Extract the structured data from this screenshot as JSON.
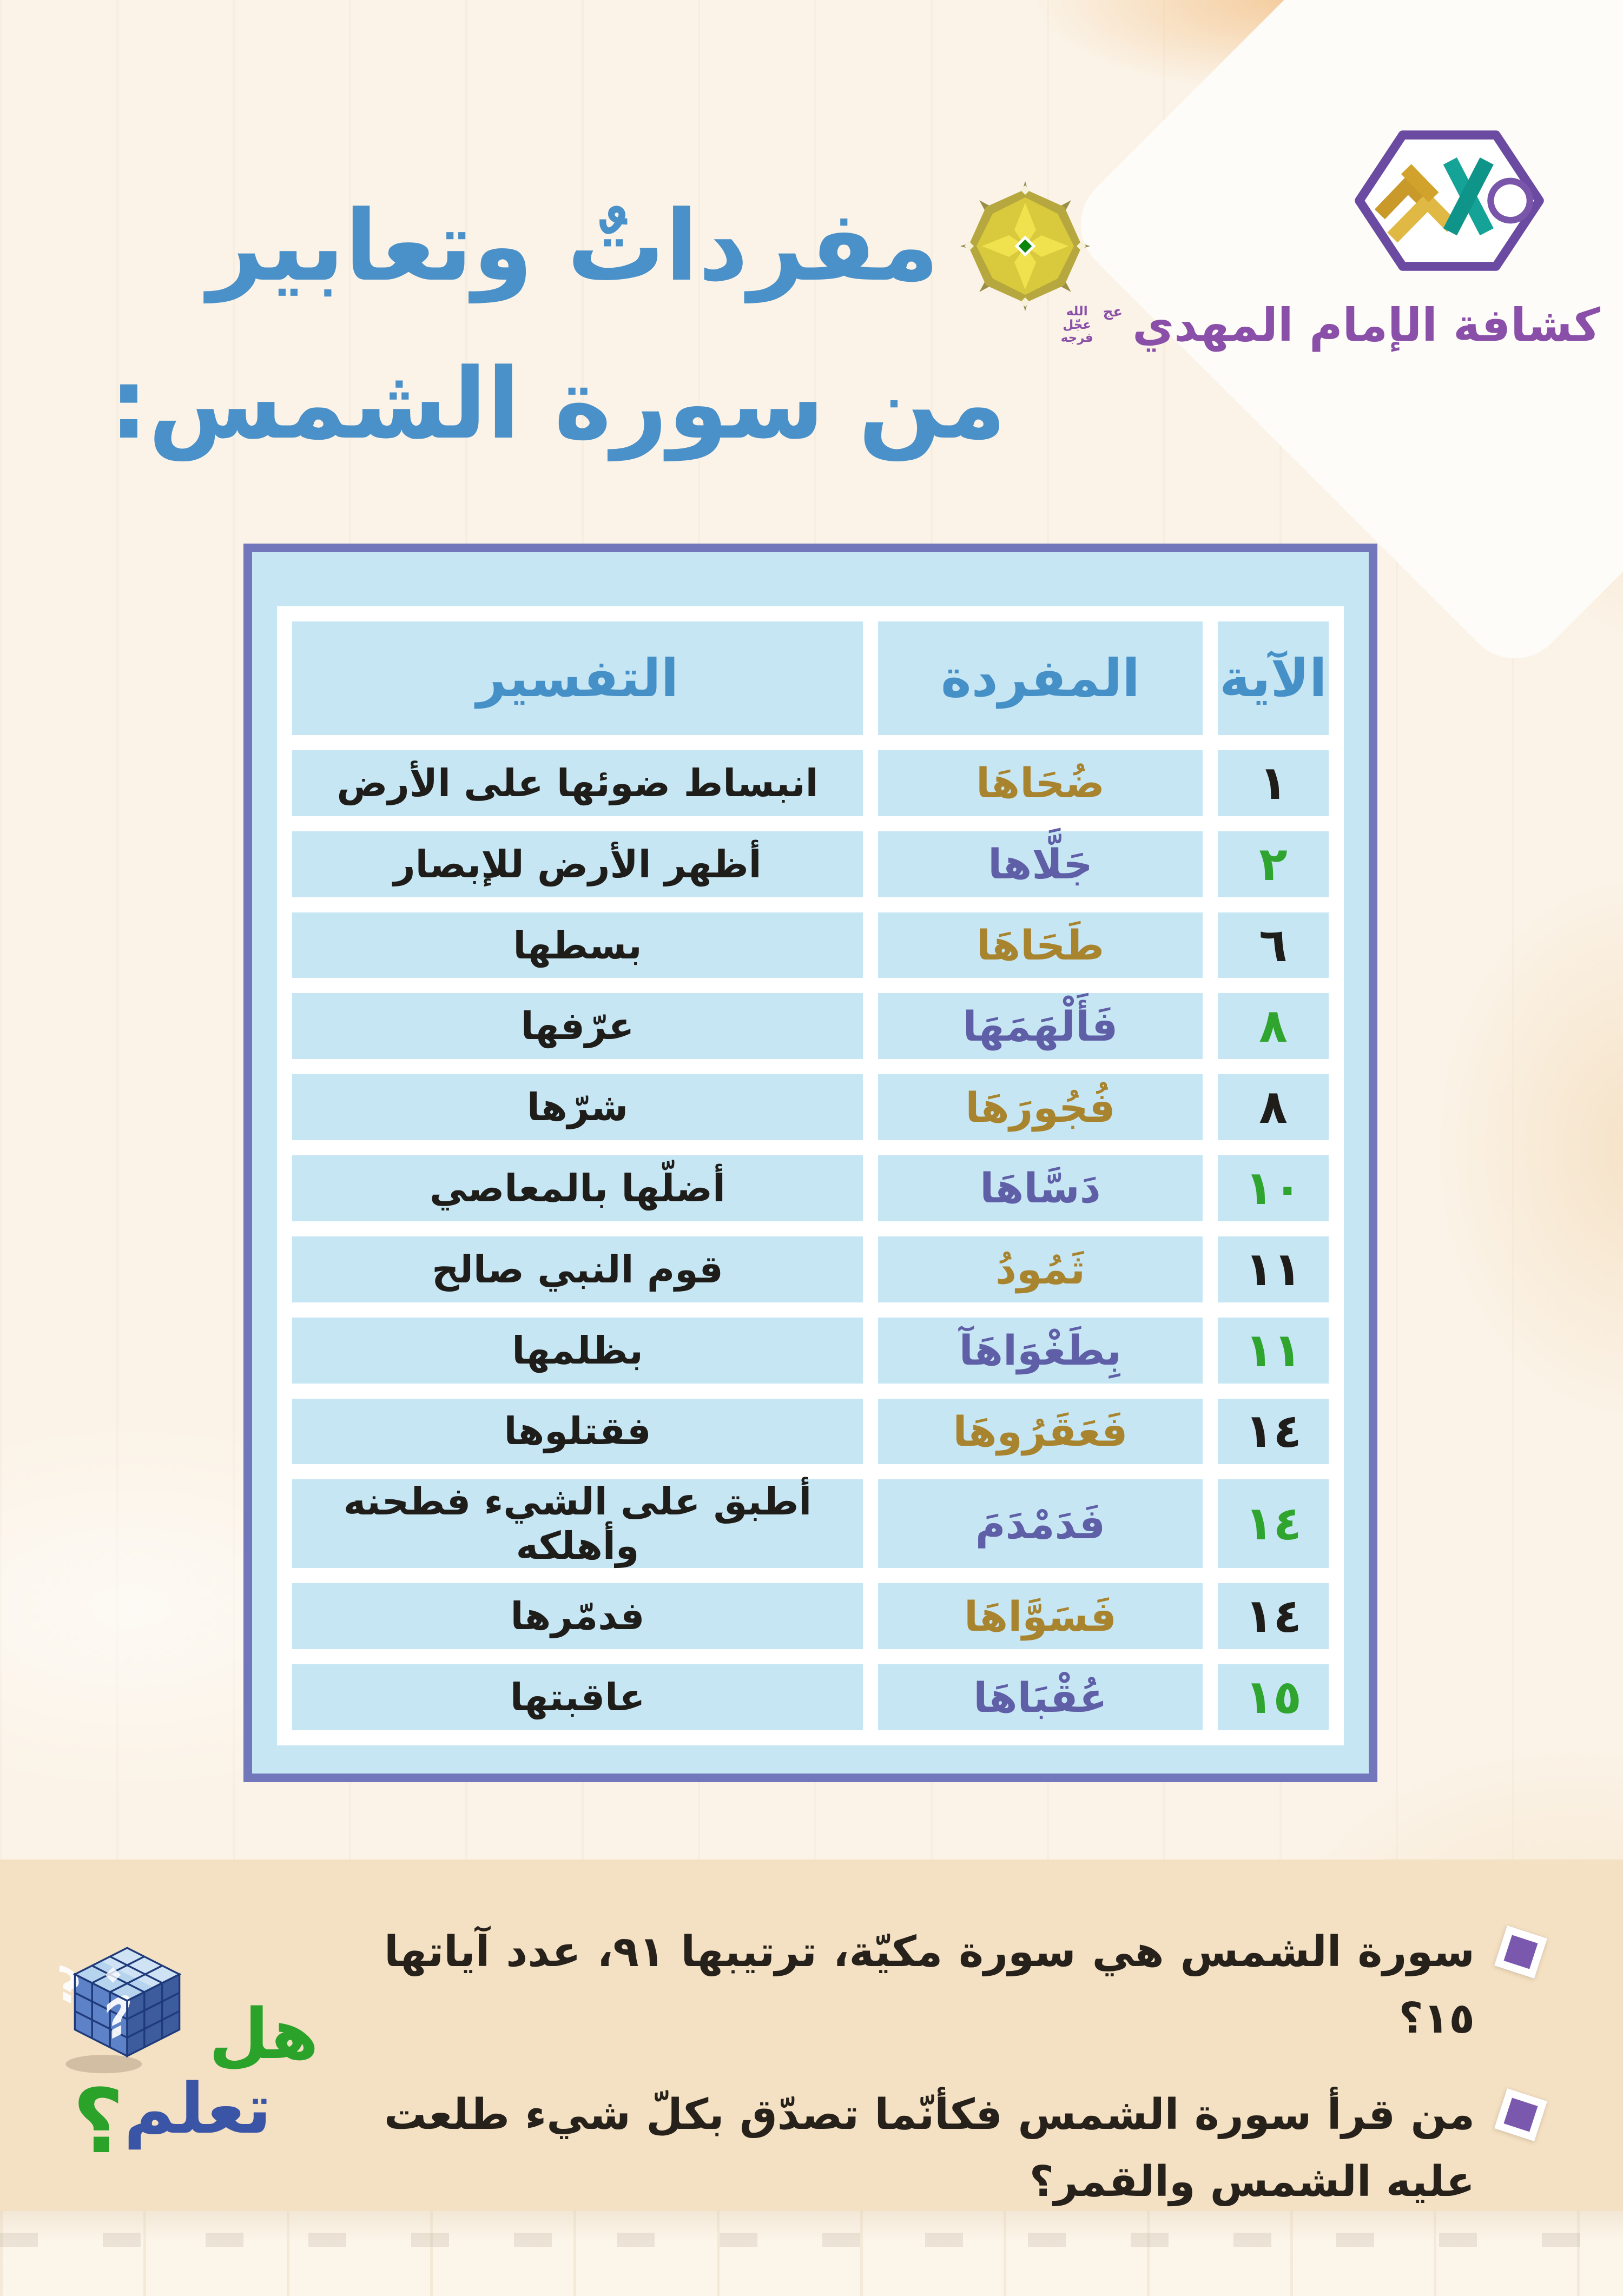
{
  "brand": {
    "name": "كشافة الإمام المهدي",
    "aj": "عج",
    "blessing": [
      "الله",
      "عجّل",
      "فرجه"
    ]
  },
  "title": {
    "line1": "مفرداتٌ وتعابير",
    "line2": "من سورة الشمس:"
  },
  "table": {
    "headers": {
      "verse": "الآية",
      "word": "المفردة",
      "tafsir": "التفسير"
    },
    "rows": [
      {
        "verse": "١",
        "verse_color": "black",
        "word": "ضُحَاهَا",
        "word_color": "gold",
        "tafsir": "انبساط ضوئها على الأرض"
      },
      {
        "verse": "٢",
        "verse_color": "green",
        "word": "جَلَّاها",
        "word_color": "purple",
        "tafsir": "أظهر الأرض للإبصار"
      },
      {
        "verse": "٦",
        "verse_color": "black",
        "word": "طَحَاهَا",
        "word_color": "gold",
        "tafsir": "بسطها"
      },
      {
        "verse": "٨",
        "verse_color": "green",
        "word": "فَأَلْهَمَهَا",
        "word_color": "purple",
        "tafsir": "عرّفها"
      },
      {
        "verse": "٨",
        "verse_color": "black",
        "word": "فُجُورَهَا",
        "word_color": "gold",
        "tafsir": "شرّها"
      },
      {
        "verse": "١٠",
        "verse_color": "green",
        "word": "دَسَّاهَا",
        "word_color": "purple",
        "tafsir": "أضلّها بالمعاصي"
      },
      {
        "verse": "١١",
        "verse_color": "black",
        "word": "ثَمُودُ",
        "word_color": "gold",
        "tafsir": "قوم النبي صالح"
      },
      {
        "verse": "١١",
        "verse_color": "green",
        "word": "بِطَغْوَاهَآ",
        "word_color": "purple",
        "tafsir": "بظلمها"
      },
      {
        "verse": "١٤",
        "verse_color": "black",
        "word": "فَعَقَرُوهَا",
        "word_color": "gold",
        "tafsir": "فقتلوها"
      },
      {
        "verse": "١٤",
        "verse_color": "green",
        "word": "فَدَمْدَمَ",
        "word_color": "purple",
        "tafsir": "أطبق على الشيء فطحنه وأهلكه"
      },
      {
        "verse": "١٤",
        "verse_color": "black",
        "word": "فَسَوَّاهَا",
        "word_color": "gold",
        "tafsir": "فدمّرها"
      },
      {
        "verse": "١٥",
        "verse_color": "green",
        "word": "عُقْبَاهَا",
        "word_color": "purple",
        "tafsir": "عاقبتها"
      }
    ]
  },
  "didyouknow": {
    "logo_word1": "هل",
    "logo_word2": "تعلم",
    "logo_qmark": "؟",
    "facts": [
      "سورة الشمس هي سورة مكيّة، ترتيبها ٩١، عدد آياتها ١٥؟",
      "من قرأ سورة الشمس فكأنّما تصدّق بكلّ شيء طلعت عليه الشمس والقمر؟"
    ]
  },
  "colors": {
    "gold": "#a8842e",
    "purple": "#5f5fa7",
    "green": "#2fa42f",
    "black": "#1f1d1a",
    "header_blue": "#4690c8",
    "title_blue": "#4a90c9",
    "brand_purple": "#8a4fa8",
    "table_border_purple": "#7277bb",
    "table_bg_blue": "#c7e6f3",
    "band_tan": "#f4e0c2",
    "bullet_purple": "#7a58ad",
    "dyk_green": "#2ba32b",
    "dyk_blue": "#3a55a6"
  }
}
